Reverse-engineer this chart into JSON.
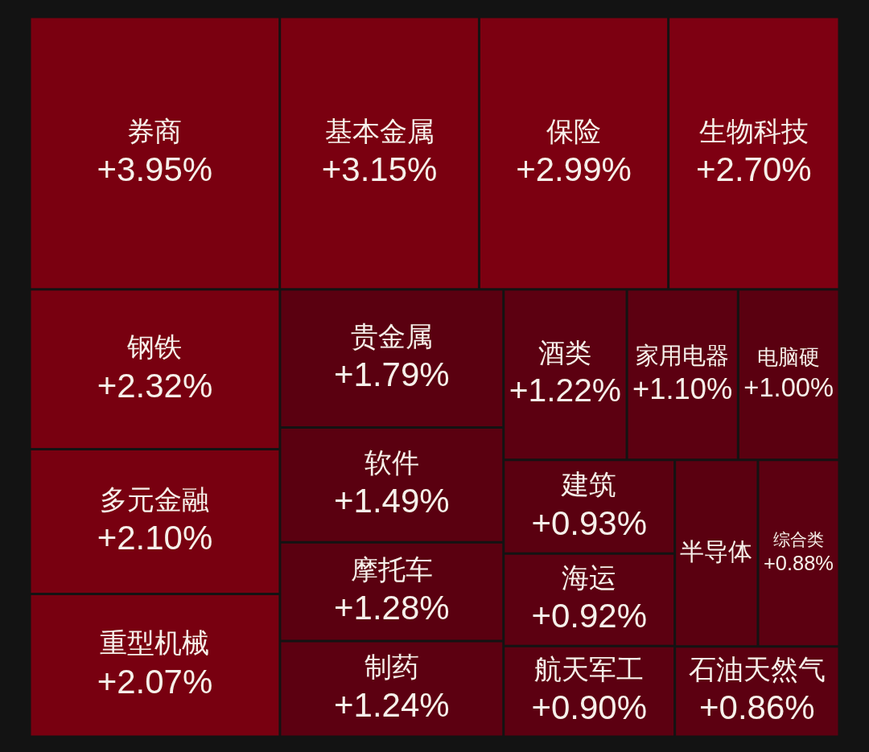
{
  "chart_data": {
    "type": "other",
    "categories": [
      "券商",
      "基本金属",
      "保险",
      "生物科技",
      "钢铁",
      "多元金融",
      "重型机械",
      "贵金属",
      "软件",
      "摩托车",
      "制药",
      "酒类",
      "家用电器",
      "电脑硬",
      "建筑",
      "海运",
      "航天军工",
      "半导体",
      "综合类",
      "石油天然气"
    ],
    "values": [
      3.95,
      3.15,
      2.99,
      2.7,
      2.32,
      2.1,
      2.07,
      1.79,
      1.49,
      1.28,
      1.24,
      1.22,
      1.1,
      1.0,
      0.93,
      0.92,
      0.9,
      null,
      0.88,
      0.86
    ],
    "value_labels": [
      "+3.95%",
      "+3.15%",
      "+2.99%",
      "+2.70%",
      "+2.32%",
      "+2.10%",
      "+2.07%",
      "+1.79%",
      "+1.49%",
      "+1.28%",
      "+1.24%",
      "+1.22%",
      "+1.10%",
      "+1.00%",
      "+0.93%",
      "+0.92%",
      "+0.90%",
      null,
      "+0.88%",
      "+0.86%"
    ],
    "colors": [
      "#7a0010",
      "#7a0010",
      "#7c0011",
      "#7e0012",
      "#780010",
      "#780010",
      "#780010",
      "#5a0010",
      "#5a0010",
      "#5a0010",
      "#5c0011",
      "#5c0011",
      "#5c0011",
      "#5a0010",
      "#5a0010",
      "#5c0011",
      "#5c0011",
      "#5a0010",
      "#5c0011",
      "#5c0011"
    ]
  }
}
